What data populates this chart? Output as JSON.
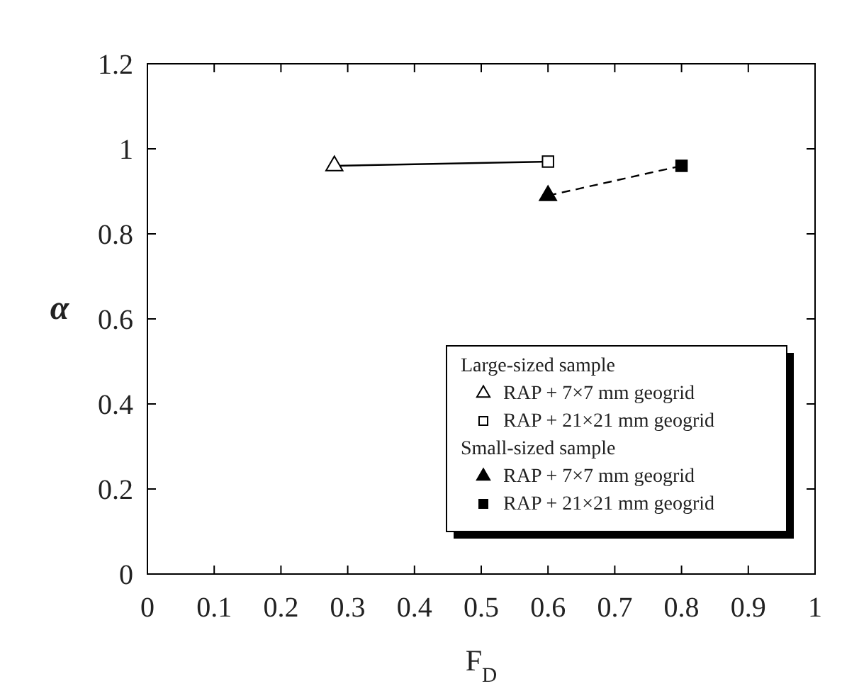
{
  "chart_data": {
    "type": "scatter",
    "xlabel": "F$_{D}$",
    "ylabel": "α",
    "xlim": [
      0,
      1
    ],
    "xticks": [
      0,
      0.1,
      0.2,
      0.3,
      0.4,
      0.5,
      0.6,
      0.7,
      0.8,
      0.9,
      1
    ],
    "ylim": [
      0,
      1.2
    ],
    "yticks": [
      0,
      0.2,
      0.4,
      0.6,
      0.8,
      1,
      1.2
    ],
    "grid": false,
    "legend": "bottom right",
    "annotations": [
      "Large-sized sample",
      "Small-sized sample"
    ],
    "series": [
      {
        "type": "line",
        "x": [
          0.28,
          0.6
        ],
        "values": [
          0.96,
          0.97
        ],
        "color": "#000000",
        "line_style": "solid",
        "marker": "none"
      },
      {
        "type": "line",
        "x": [
          0.6,
          0.8
        ],
        "values": [
          0.89,
          0.96
        ],
        "color": "#000000",
        "line_style": "dashed",
        "marker": "none"
      },
      {
        "name": "RAP + 7×7 mm geogrid",
        "x": [
          0.28
        ],
        "values": [
          0.96
        ],
        "color": "#ffffff",
        "marker": "triangle"
      },
      {
        "name": "RAP + 21×21 mm geogrid",
        "x": [
          0.6
        ],
        "values": [
          0.97
        ],
        "color": "#ffffff",
        "marker": "square"
      },
      {
        "name": "RAP + 7×7 mm geogrid",
        "x": [
          0.6
        ],
        "values": [
          0.89
        ],
        "color": "#000000",
        "marker": "triangle"
      },
      {
        "name": "RAP + 21×21 mm geogrid",
        "x": [
          0.8
        ],
        "values": [
          0.96
        ],
        "color": "#000000",
        "marker": "square"
      }
    ]
  }
}
